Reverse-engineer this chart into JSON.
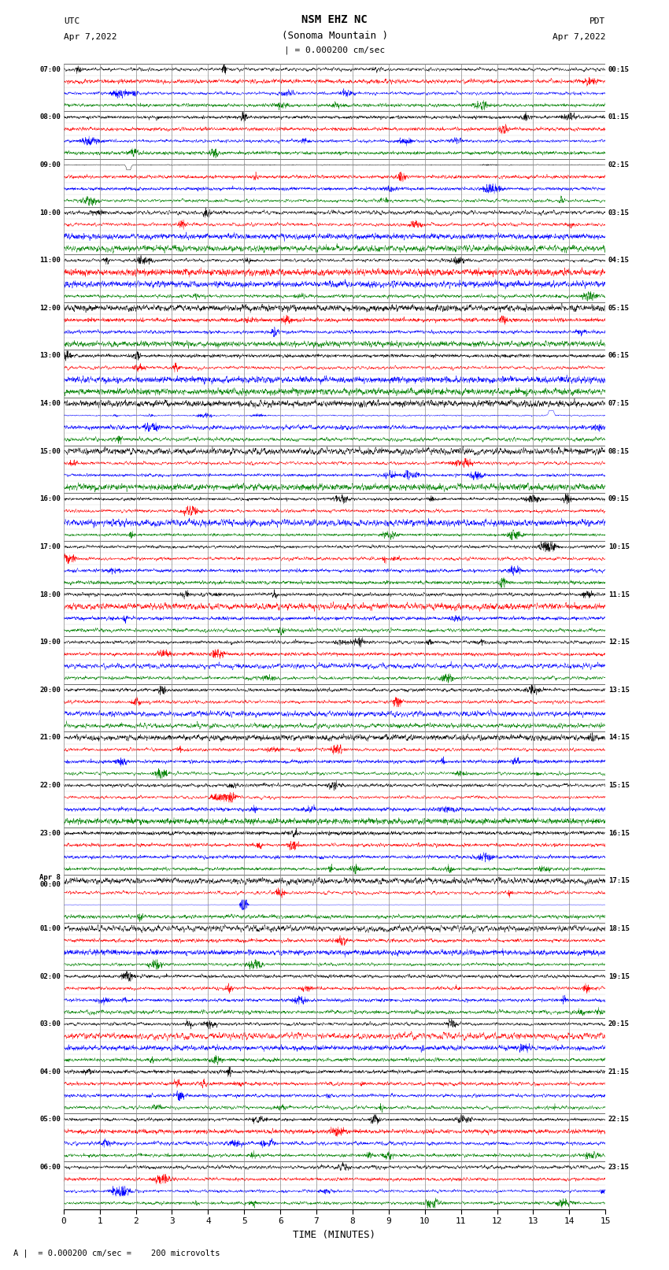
{
  "title_line1": "NSM EHZ NC",
  "title_line2": "(Sonoma Mountain )",
  "title_line3": "| = 0.000200 cm/sec",
  "label_utc": "UTC",
  "label_pdt": "PDT",
  "date_left": "Apr 7,2022",
  "date_right": "Apr 7,2022",
  "xlabel": "TIME (MINUTES)",
  "footer": "A |  = 0.000200 cm/sec =    200 microvolts",
  "utc_labels": [
    "07:00",
    "08:00",
    "09:00",
    "10:00",
    "11:00",
    "12:00",
    "13:00",
    "14:00",
    "15:00",
    "16:00",
    "17:00",
    "18:00",
    "19:00",
    "20:00",
    "21:00",
    "22:00",
    "23:00",
    "Apr 8\n00:00",
    "01:00",
    "02:00",
    "03:00",
    "04:00",
    "05:00",
    "06:00"
  ],
  "pdt_labels": [
    "00:15",
    "01:15",
    "02:15",
    "03:15",
    "04:15",
    "05:15",
    "06:15",
    "07:15",
    "08:15",
    "09:15",
    "10:15",
    "11:15",
    "12:15",
    "13:15",
    "14:15",
    "15:15",
    "16:15",
    "17:15",
    "18:15",
    "19:15",
    "20:15",
    "21:15",
    "22:15",
    "23:15"
  ],
  "colors": [
    "black",
    "red",
    "blue",
    "green"
  ],
  "n_hours": 24,
  "traces_per_hour": 4,
  "minutes": 15,
  "bg_color": "white",
  "seed": 42,
  "noise_base": 0.18,
  "trace_lw": 0.3
}
